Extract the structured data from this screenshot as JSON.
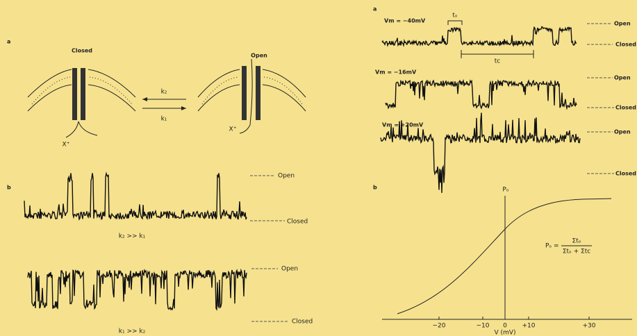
{
  "left": {
    "panel_a": {
      "label": "a",
      "closed": "Closed",
      "open": "Open",
      "k2": "k₂",
      "k1": "k₁",
      "ion_closed": "X⁺",
      "ion_open": "X⁺"
    },
    "panel_b": {
      "label": "b",
      "trace1": {
        "open": "Open",
        "closed": "Closed",
        "condition": "k₂ >> k₁"
      },
      "trace2": {
        "open": "Open",
        "closed": "Closed",
        "condition": "k₁ >> k₂"
      }
    }
  },
  "right": {
    "panel_a": {
      "label": "a",
      "to": "tₒ",
      "tc": "tc",
      "traces": [
        {
          "voltage": "Vm = −40mV",
          "open": "Open",
          "closed": "Closed"
        },
        {
          "voltage": "Vm = −16mV",
          "open": "Open",
          "closed": "Closed"
        },
        {
          "voltage": "Vm = +20mV",
          "open": "Open",
          "closed": "Closed"
        }
      ]
    },
    "panel_b": {
      "label": "b",
      "y_label": "Pₒ",
      "x_label": "V (mV)",
      "x_ticks": [
        "−20",
        "−10",
        "0",
        "+10",
        "+30"
      ],
      "formula_lhs": "Pₒ =",
      "formula_num": "Σtₒ",
      "formula_den": "Σtₒ + Σtc"
    }
  }
}
